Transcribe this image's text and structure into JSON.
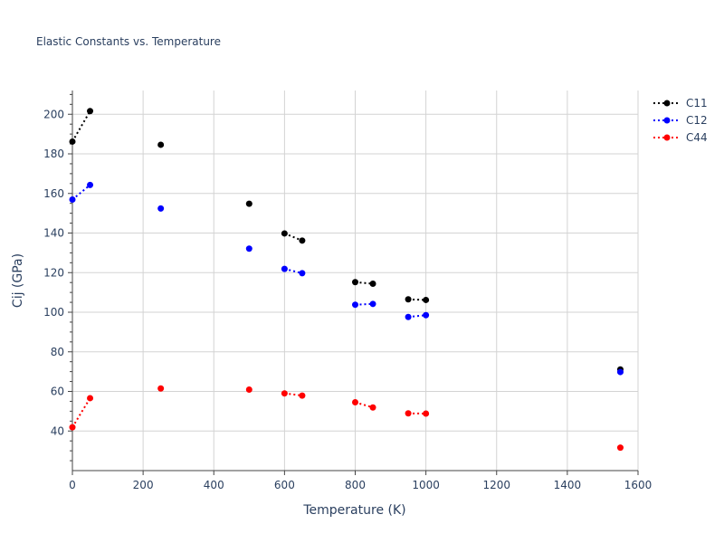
{
  "chart_data": {
    "type": "line",
    "title": "Elastic Constants vs. Temperature",
    "xlabel": "Temperature (K)",
    "ylabel": "Cij (GPa)",
    "xlim": [
      0,
      1600
    ],
    "ylim": [
      20,
      212
    ],
    "x_ticks": [
      0,
      200,
      400,
      600,
      800,
      1000,
      1200,
      1400,
      1600
    ],
    "y_ticks": [
      40,
      60,
      80,
      100,
      120,
      140,
      160,
      180,
      200
    ],
    "grid": true,
    "legend_position": "top-right",
    "series": [
      {
        "name": "C11",
        "color": "#000000",
        "points": [
          [
            0,
            186.2
          ],
          [
            50,
            201.6
          ],
          [
            250,
            184.6
          ],
          [
            500,
            154.8
          ],
          [
            600,
            139.8
          ],
          [
            650,
            136.2
          ],
          [
            800,
            115.2
          ],
          [
            850,
            114.4
          ],
          [
            950,
            106.5
          ],
          [
            1000,
            106.2
          ],
          [
            1550,
            71.1
          ]
        ]
      },
      {
        "name": "C12",
        "color": "#0000ff",
        "points": [
          [
            0,
            156.9
          ],
          [
            50,
            164.3
          ],
          [
            250,
            152.4
          ],
          [
            500,
            132.1
          ],
          [
            600,
            121.9
          ],
          [
            650,
            119.7
          ],
          [
            800,
            103.8
          ],
          [
            850,
            104.2
          ],
          [
            950,
            97.6
          ],
          [
            1000,
            98.5
          ],
          [
            1550,
            69.8
          ]
        ]
      },
      {
        "name": "C44",
        "color": "#ff0000",
        "points": [
          [
            0,
            41.9
          ],
          [
            50,
            56.6
          ],
          [
            250,
            61.5
          ],
          [
            500,
            60.9
          ],
          [
            600,
            59.0
          ],
          [
            650,
            57.9
          ],
          [
            800,
            54.5
          ],
          [
            850,
            51.9
          ],
          [
            950,
            48.9
          ],
          [
            1000,
            48.8
          ],
          [
            1550,
            31.6
          ]
        ]
      }
    ],
    "segments": [
      [
        0,
        1
      ],
      [
        4,
        5
      ],
      [
        6,
        7
      ],
      [
        8,
        9
      ]
    ]
  }
}
